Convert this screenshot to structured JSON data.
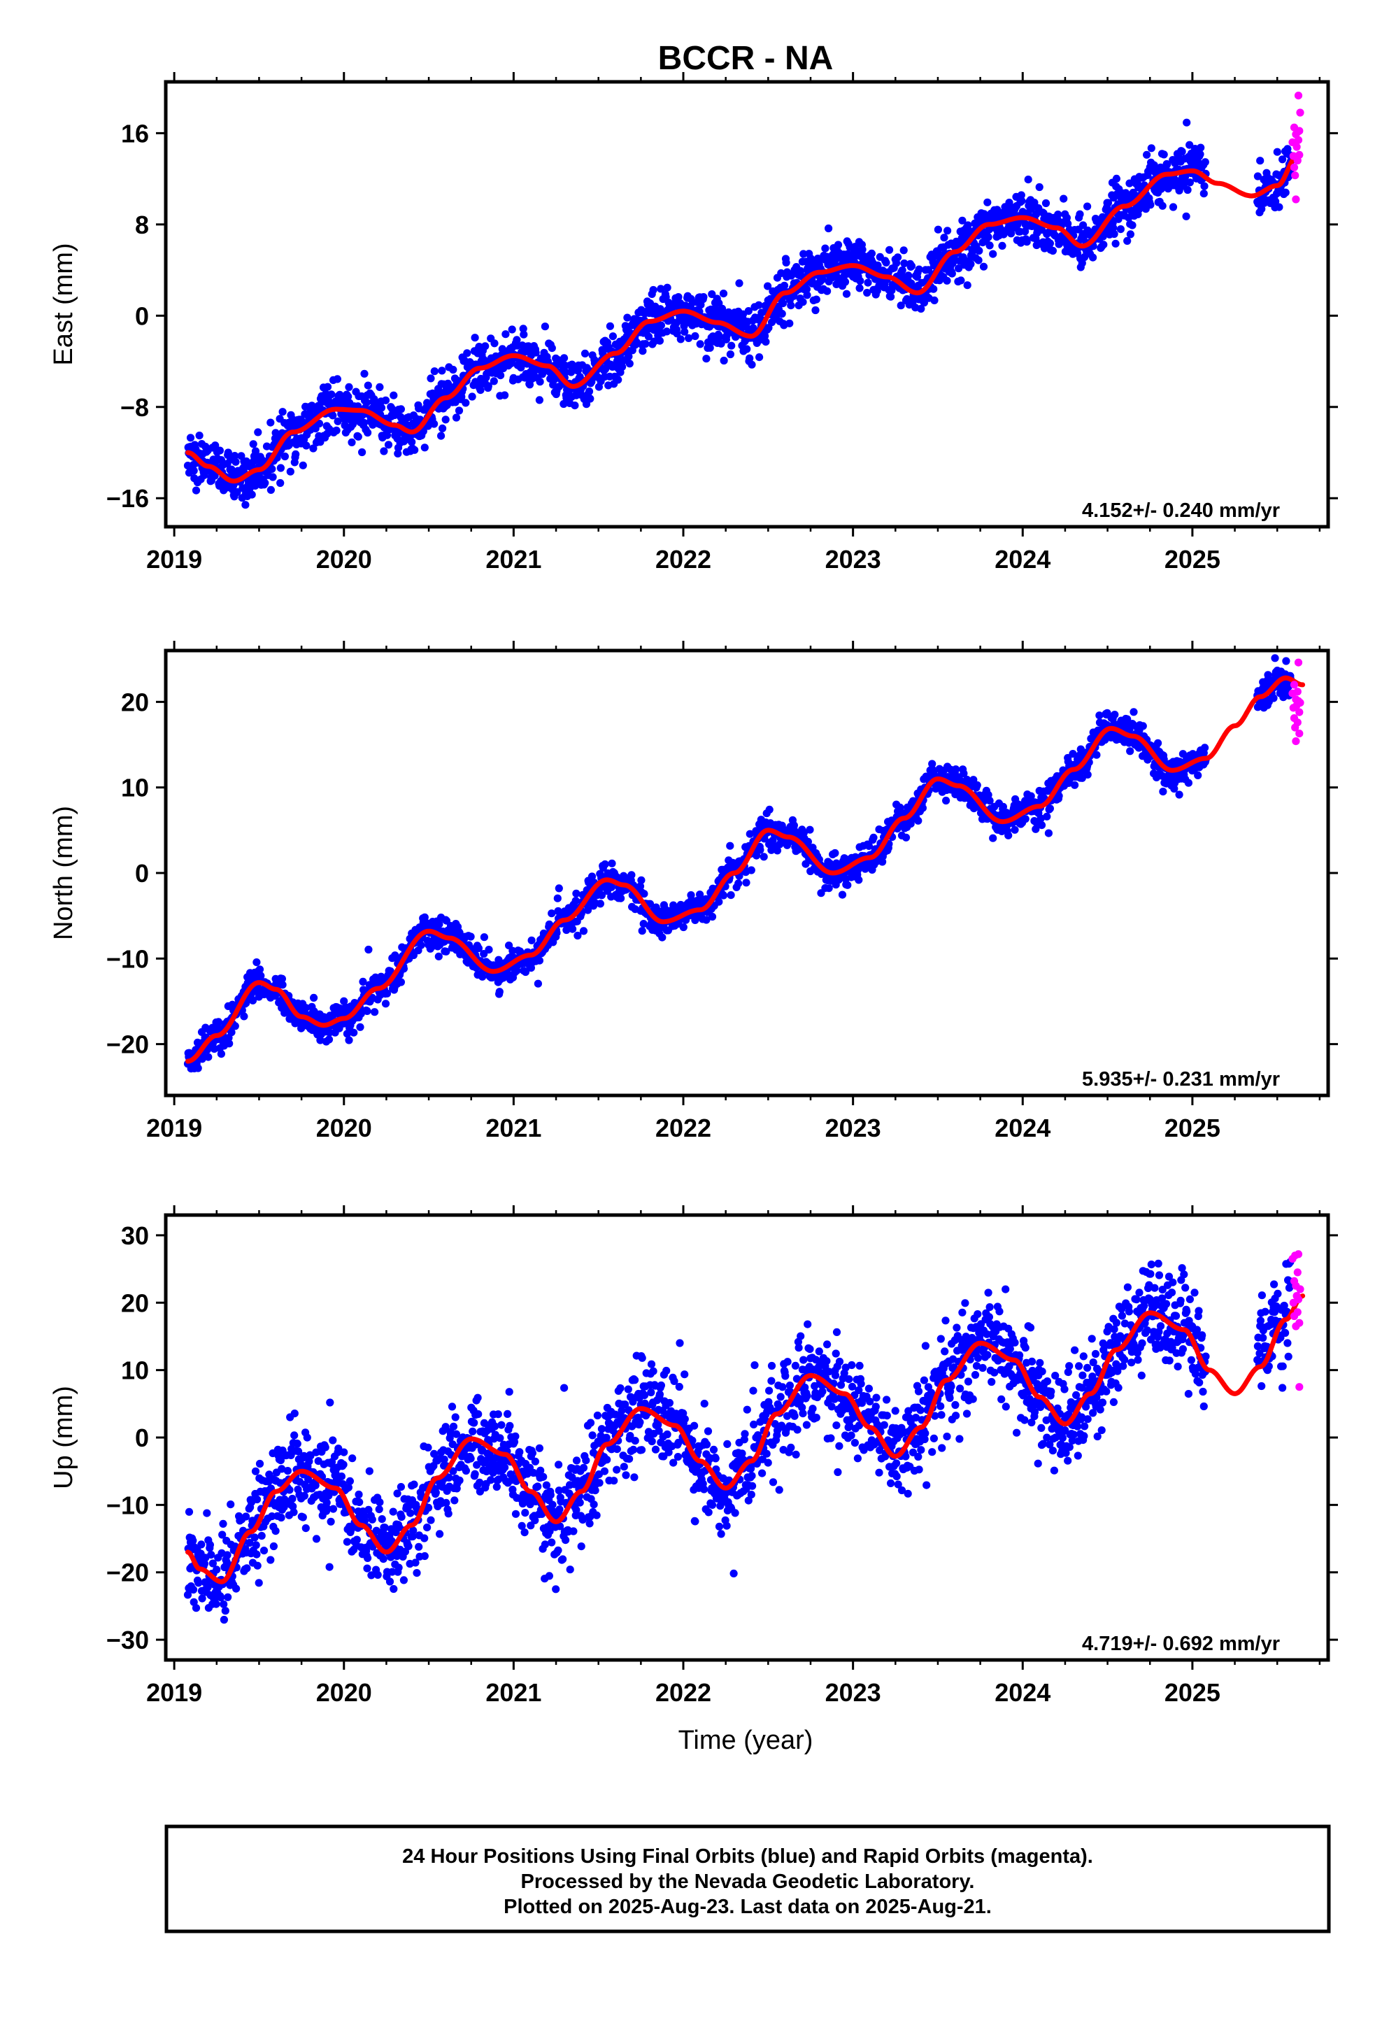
{
  "title": "BCCR - NA",
  "xlabel": "Time (year)",
  "colors": {
    "final_orbits": "#0000ff",
    "rapid_orbits": "#ff00ff",
    "model_fit": "#ff0000",
    "frame": "#000000"
  },
  "footer": {
    "line1": "24 Hour Positions Using Final Orbits (blue) and Rapid Orbits (magenta).",
    "line2": "Processed by the Nevada Geodetic Laboratory.",
    "line3": "Plotted on 2025-Aug-23. Last data on 2025-Aug-21."
  },
  "chart_data": [
    {
      "type": "scatter",
      "ylabel": "East (mm)",
      "rate_label": "4.152+/- 0.240 mm/yr",
      "xlim": [
        2018.95,
        2025.8
      ],
      "ylim": [
        -18.5,
        20.5
      ],
      "xticks": [
        2019,
        2020,
        2021,
        2022,
        2023,
        2024,
        2025
      ],
      "xtick_labels": [
        "2019",
        "2020",
        "2021",
        "2022",
        "2023",
        "2024",
        "2025"
      ],
      "yticks": [
        -16,
        -8,
        0,
        8,
        16
      ],
      "ytick_labels": [
        "−16",
        "−8",
        "0",
        "8",
        "16"
      ],
      "grid": false,
      "model_fit": {
        "x": [
          2019.08,
          2019.2,
          2019.35,
          2019.5,
          2019.7,
          2019.95,
          2020.1,
          2020.3,
          2020.4,
          2020.6,
          2020.8,
          2021.0,
          2021.2,
          2021.35,
          2021.6,
          2021.8,
          2022.0,
          2022.2,
          2022.4,
          2022.6,
          2022.8,
          2023.0,
          2023.2,
          2023.38,
          2023.6,
          2023.8,
          2024.0,
          2024.2,
          2024.35,
          2024.6,
          2024.85,
          2025.0,
          2025.15,
          2025.35,
          2025.5,
          2025.62
        ],
        "y": [
          -12,
          -13.2,
          -14.5,
          -13.5,
          -10.2,
          -8.2,
          -8.3,
          -9.6,
          -10.2,
          -7.2,
          -4.6,
          -3.5,
          -4.4,
          -6.2,
          -3.3,
          -0.5,
          0.4,
          -0.6,
          -1.8,
          2.0,
          3.8,
          4.4,
          3.4,
          2.0,
          5.6,
          8.0,
          8.6,
          7.7,
          6.1,
          9.6,
          12.4,
          12.7,
          11.6,
          10.5,
          11.4,
          14.0
        ]
      },
      "final_trend": {
        "x": [
          2019.08,
          2019.2,
          2019.35,
          2019.5,
          2019.7,
          2019.95,
          2020.1,
          2020.3,
          2020.4,
          2020.6,
          2020.8,
          2021.0,
          2021.2,
          2021.35,
          2021.6,
          2021.8,
          2022.0,
          2022.2,
          2022.4,
          2022.6,
          2022.8,
          2023.0,
          2023.2,
          2023.38,
          2023.6,
          2023.8,
          2024.0,
          2024.2,
          2024.35,
          2024.6,
          2024.85,
          2025.0,
          2025.08,
          2025.38,
          2025.5,
          2025.58
        ],
        "y": [
          -12,
          -13.2,
          -14.5,
          -13.5,
          -10.2,
          -8.2,
          -8.3,
          -9.6,
          -10.2,
          -7.2,
          -4.6,
          -3.5,
          -4.4,
          -6.2,
          -3.3,
          -0.5,
          0.4,
          -0.6,
          -1.8,
          2.0,
          3.8,
          4.4,
          3.4,
          2.0,
          5.6,
          8.0,
          8.6,
          7.7,
          6.1,
          9.6,
          12.4,
          12.7,
          12.5,
          10.8,
          11.4,
          12.6
        ],
        "gaps": [
          [
            2025.08,
            2025.38
          ]
        ],
        "scatter_sd": 1.1,
        "outlier_range": 3.3
      },
      "rapid_points": {
        "x": [
          2025.59,
          2025.595,
          2025.6,
          2025.6,
          2025.605,
          2025.61,
          2025.61,
          2025.615,
          2025.62,
          2025.62,
          2025.625,
          2025.625,
          2025.63,
          2025.63,
          2025.635
        ],
        "y": [
          15.2,
          14.0,
          16.5,
          13.0,
          12.3,
          15.9,
          10.2,
          14.8,
          16.1,
          13.6,
          19.3,
          15.4,
          16.2,
          14.1,
          17.8
        ]
      }
    },
    {
      "type": "scatter",
      "ylabel": "North (mm)",
      "rate_label": "5.935+/- 0.231 mm/yr",
      "xlim": [
        2018.95,
        2025.8
      ],
      "ylim": [
        -26,
        26
      ],
      "xticks": [
        2019,
        2020,
        2021,
        2022,
        2023,
        2024,
        2025
      ],
      "xtick_labels": [
        "2019",
        "2020",
        "2021",
        "2022",
        "2023",
        "2024",
        "2025"
      ],
      "yticks": [
        -20,
        -10,
        0,
        10,
        20
      ],
      "ytick_labels": [
        "−20",
        "−10",
        "0",
        "10",
        "20"
      ],
      "grid": false,
      "model_fit": {
        "x": [
          2019.08,
          2019.25,
          2019.5,
          2019.6,
          2019.75,
          2019.88,
          2020.0,
          2020.2,
          2020.5,
          2020.62,
          2020.88,
          2021.1,
          2021.3,
          2021.55,
          2021.65,
          2021.88,
          2022.1,
          2022.3,
          2022.5,
          2022.62,
          2022.88,
          2023.1,
          2023.3,
          2023.5,
          2023.62,
          2023.88,
          2024.1,
          2024.3,
          2024.52,
          2024.65,
          2024.88,
          2025.08,
          2025.25,
          2025.4,
          2025.55,
          2025.65
        ],
        "y": [
          -22,
          -19,
          -12.8,
          -13.6,
          -16.8,
          -17.8,
          -17.0,
          -13.5,
          -6.8,
          -7.6,
          -11.5,
          -9.6,
          -5.5,
          -0.8,
          -1.4,
          -5.7,
          -4.3,
          0.0,
          5.0,
          4.2,
          0.0,
          1.8,
          6.4,
          11.0,
          10.2,
          6.0,
          7.8,
          12.1,
          16.9,
          16.0,
          12.0,
          13.4,
          17.2,
          20.6,
          22.8,
          22.0
        ]
      },
      "final_trend": {
        "x": [
          2019.08,
          2019.25,
          2019.5,
          2019.6,
          2019.75,
          2019.88,
          2020.0,
          2020.2,
          2020.5,
          2020.62,
          2020.88,
          2021.1,
          2021.3,
          2021.55,
          2021.65,
          2021.88,
          2022.1,
          2022.3,
          2022.5,
          2022.62,
          2022.88,
          2023.1,
          2023.3,
          2023.5,
          2023.62,
          2023.88,
          2024.1,
          2024.3,
          2024.52,
          2024.65,
          2024.88,
          2025.08,
          2025.38,
          2025.5,
          2025.58
        ],
        "y": [
          -22,
          -19,
          -12.8,
          -13.6,
          -16.8,
          -17.8,
          -17.0,
          -13.5,
          -6.8,
          -7.6,
          -11.5,
          -9.6,
          -5.5,
          -0.8,
          -1.4,
          -5.7,
          -4.3,
          0.0,
          5.0,
          4.2,
          0.0,
          1.8,
          6.4,
          11.0,
          10.2,
          6.0,
          7.8,
          12.1,
          16.9,
          16.0,
          12.0,
          13.4,
          20.4,
          22.3,
          22.2
        ],
        "gaps": [
          [
            2025.08,
            2025.38
          ]
        ],
        "scatter_sd": 0.9,
        "outlier_range": 2.8
      },
      "rapid_points": {
        "x": [
          2025.59,
          2025.595,
          2025.6,
          2025.6,
          2025.605,
          2025.61,
          2025.61,
          2025.615,
          2025.62,
          2025.62,
          2025.625,
          2025.625,
          2025.63,
          2025.63,
          2025.635
        ],
        "y": [
          21.0,
          19.3,
          22.0,
          18.1,
          17.0,
          20.3,
          15.4,
          19.6,
          21.2,
          17.6,
          24.6,
          20.1,
          18.8,
          16.3,
          19.9
        ]
      }
    },
    {
      "type": "scatter",
      "ylabel": "Up (mm)",
      "rate_label": "4.719+/- 0.692 mm/yr",
      "xlim": [
        2018.95,
        2025.8
      ],
      "ylim": [
        -33,
        33
      ],
      "xticks": [
        2019,
        2020,
        2021,
        2022,
        2023,
        2024,
        2025
      ],
      "xtick_labels": [
        "2019",
        "2020",
        "2021",
        "2022",
        "2023",
        "2024",
        "2025"
      ],
      "yticks": [
        -30,
        -20,
        -10,
        0,
        10,
        20,
        30
      ],
      "ytick_labels": [
        "−30",
        "−20",
        "−10",
        "0",
        "10",
        "20",
        "30"
      ],
      "grid": false,
      "model_fit": {
        "x": [
          2019.08,
          2019.15,
          2019.28,
          2019.45,
          2019.6,
          2019.75,
          2019.95,
          2020.1,
          2020.25,
          2020.4,
          2020.55,
          2020.75,
          2020.95,
          2021.1,
          2021.25,
          2021.4,
          2021.55,
          2021.75,
          2021.95,
          2022.1,
          2022.25,
          2022.4,
          2022.55,
          2022.75,
          2022.95,
          2023.1,
          2023.25,
          2023.4,
          2023.55,
          2023.75,
          2023.95,
          2024.1,
          2024.25,
          2024.4,
          2024.55,
          2024.75,
          2024.95,
          2025.1,
          2025.25,
          2025.4,
          2025.55,
          2025.65
        ],
        "y": [
          -17,
          -19.5,
          -21.4,
          -14,
          -8,
          -5,
          -7.5,
          -13,
          -17,
          -13,
          -6,
          -0.2,
          -2.5,
          -8,
          -12.5,
          -8,
          -1,
          4.3,
          1.8,
          -3.5,
          -7.5,
          -3.5,
          3.5,
          9.2,
          6.5,
          1.5,
          -2.8,
          1.5,
          8.5,
          14,
          11.5,
          6,
          2,
          6.5,
          13,
          18.5,
          16,
          10,
          6.5,
          10.5,
          17.5,
          21.0
        ]
      },
      "final_trend": {
        "x": [
          2019.08,
          2019.15,
          2019.28,
          2019.45,
          2019.6,
          2019.75,
          2019.95,
          2020.1,
          2020.25,
          2020.4,
          2020.55,
          2020.75,
          2020.95,
          2021.1,
          2021.25,
          2021.4,
          2021.55,
          2021.75,
          2021.95,
          2022.1,
          2022.25,
          2022.4,
          2022.55,
          2022.75,
          2022.95,
          2023.1,
          2023.25,
          2023.4,
          2023.55,
          2023.75,
          2023.95,
          2024.1,
          2024.25,
          2024.4,
          2024.55,
          2024.75,
          2024.95,
          2025.08,
          2025.38,
          2025.5,
          2025.58
        ],
        "y": [
          -17,
          -19.5,
          -21.4,
          -14,
          -8,
          -5,
          -7.5,
          -13,
          -17,
          -13,
          -6,
          -0.2,
          -2.5,
          -8,
          -12.5,
          -8,
          -1,
          4.3,
          1.8,
          -3.5,
          -7.5,
          -3.5,
          3.5,
          9.2,
          6.5,
          1.5,
          -2.8,
          1.5,
          8.5,
          14,
          11.5,
          6,
          2,
          6.5,
          13,
          18.5,
          16,
          11,
          12.5,
          16,
          20
        ],
        "gaps": [
          [
            2025.08,
            2025.38
          ]
        ],
        "scatter_sd": 3.4,
        "outlier_range": 9.5
      },
      "rapid_points": {
        "x": [
          2025.59,
          2025.595,
          2025.6,
          2025.6,
          2025.605,
          2025.61,
          2025.61,
          2025.615,
          2025.62,
          2025.62,
          2025.625,
          2025.625,
          2025.63,
          2025.63,
          2025.635
        ],
        "y": [
          26.5,
          20.0,
          23.2,
          18.0,
          27.0,
          22.5,
          16.5,
          21.0,
          24.5,
          18.6,
          27.2,
          20.5,
          7.5,
          17.0,
          22.0
        ]
      }
    }
  ]
}
